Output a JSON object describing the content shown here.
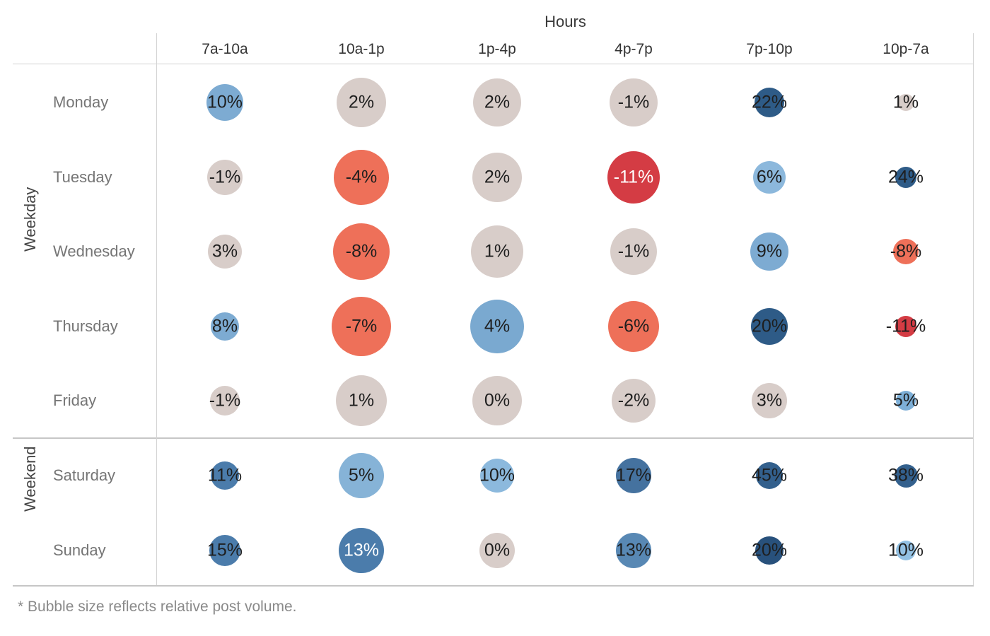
{
  "chart_data": {
    "type": "heatmap",
    "variant": "bubble-matrix",
    "title": "Hours",
    "note": "* Bubble size reflects relative post volume.",
    "x_axis_title": "Hours",
    "x_categories": [
      "7a-10a",
      "10a-1p",
      "1p-4p",
      "4p-7p",
      "7p-10p",
      "10p-7a"
    ],
    "row_groups": [
      {
        "label": "Weekday",
        "rows": [
          "Monday",
          "Tuesday",
          "Wednesday",
          "Thursday",
          "Friday"
        ]
      },
      {
        "label": "Weekend",
        "rows": [
          "Saturday",
          "Sunday"
        ]
      }
    ],
    "value_unit": "percent",
    "size_encoding": "relative post volume",
    "palette": {
      "negative_strong": "#d43c44",
      "negative": "#ee7059",
      "neutral": "#d8cdc9",
      "positive_light": "#8cb8dc",
      "positive_mid": "#7dabd2",
      "positive": "#4b7cab",
      "positive_strong": "#2e5b87"
    },
    "rows": [
      {
        "day": "Monday",
        "group": "Weekday",
        "cells": [
          {
            "label": "10%",
            "value": 10,
            "size": 52,
            "color": "#7dabd2",
            "text_color": "#1e1e1e"
          },
          {
            "label": "2%",
            "value": 2,
            "size": 70,
            "color": "#d8cdc9",
            "text_color": "#1e1e1e"
          },
          {
            "label": "2%",
            "value": 2,
            "size": 68,
            "color": "#d8cdc9",
            "text_color": "#1e1e1e"
          },
          {
            "label": "-1%",
            "value": -1,
            "size": 68,
            "color": "#d8cdc9",
            "text_color": "#1e1e1e"
          },
          {
            "label": "22%",
            "value": 22,
            "size": 42,
            "color": "#2e5b87",
            "text_color": "#1e1e1e"
          },
          {
            "label": "1%",
            "value": 1,
            "size": 24,
            "color": "#d8cdc9",
            "text_color": "#1e1e1e"
          }
        ]
      },
      {
        "day": "Tuesday",
        "group": "Weekday",
        "cells": [
          {
            "label": "-1%",
            "value": -1,
            "size": 50,
            "color": "#d8cdc9",
            "text_color": "#1e1e1e"
          },
          {
            "label": "-4%",
            "value": -4,
            "size": 78,
            "color": "#ee7059",
            "text_color": "#1e1e1e"
          },
          {
            "label": "2%",
            "value": 2,
            "size": 70,
            "color": "#d8cdc9",
            "text_color": "#1e1e1e"
          },
          {
            "label": "-11%",
            "value": -11,
            "size": 74,
            "color": "#d43c44",
            "text_color": "#ffffff"
          },
          {
            "label": "6%",
            "value": 6,
            "size": 46,
            "color": "#8cb8dc",
            "text_color": "#1e1e1e"
          },
          {
            "label": "24%",
            "value": 24,
            "size": 30,
            "color": "#2e5b87",
            "text_color": "#1e1e1e"
          }
        ]
      },
      {
        "day": "Wednesday",
        "group": "Weekday",
        "cells": [
          {
            "label": "3%",
            "value": 3,
            "size": 48,
            "color": "#d8cdc9",
            "text_color": "#1e1e1e"
          },
          {
            "label": "-8%",
            "value": -8,
            "size": 80,
            "color": "#ee7059",
            "text_color": "#1e1e1e"
          },
          {
            "label": "1%",
            "value": 1,
            "size": 74,
            "color": "#d8cdc9",
            "text_color": "#1e1e1e"
          },
          {
            "label": "-1%",
            "value": -1,
            "size": 66,
            "color": "#d8cdc9",
            "text_color": "#1e1e1e"
          },
          {
            "label": "9%",
            "value": 9,
            "size": 54,
            "color": "#7dabd2",
            "text_color": "#1e1e1e"
          },
          {
            "label": "-8%",
            "value": -8,
            "size": 36,
            "color": "#ee7059",
            "text_color": "#1e1e1e"
          }
        ]
      },
      {
        "day": "Thursday",
        "group": "Weekday",
        "cells": [
          {
            "label": "8%",
            "value": 8,
            "size": 40,
            "color": "#7dabd2",
            "text_color": "#1e1e1e"
          },
          {
            "label": "-7%",
            "value": -7,
            "size": 84,
            "color": "#ee7059",
            "text_color": "#1e1e1e"
          },
          {
            "label": "4%",
            "value": 4,
            "size": 76,
            "color": "#7aa9d0",
            "text_color": "#1e1e1e"
          },
          {
            "label": "-6%",
            "value": -6,
            "size": 72,
            "color": "#ee7059",
            "text_color": "#1e1e1e"
          },
          {
            "label": "20%",
            "value": 20,
            "size": 52,
            "color": "#2e5b87",
            "text_color": "#1e1e1e"
          },
          {
            "label": "-11%",
            "value": -11,
            "size": 30,
            "color": "#d43c44",
            "text_color": "#1e1e1e"
          }
        ]
      },
      {
        "day": "Friday",
        "group": "Weekday",
        "cells": [
          {
            "label": "-1%",
            "value": -1,
            "size": 42,
            "color": "#d8cdc9",
            "text_color": "#1e1e1e"
          },
          {
            "label": "1%",
            "value": 1,
            "size": 72,
            "color": "#d8cdc9",
            "text_color": "#1e1e1e"
          },
          {
            "label": "0%",
            "value": 0,
            "size": 70,
            "color": "#d8cdc9",
            "text_color": "#1e1e1e"
          },
          {
            "label": "-2%",
            "value": -2,
            "size": 62,
            "color": "#d8cdc9",
            "text_color": "#1e1e1e"
          },
          {
            "label": "3%",
            "value": 3,
            "size": 50,
            "color": "#d8cdc9",
            "text_color": "#1e1e1e"
          },
          {
            "label": "5%",
            "value": 5,
            "size": 28,
            "color": "#7dafd7",
            "text_color": "#1e1e1e"
          }
        ]
      },
      {
        "day": "Saturday",
        "group": "Weekend",
        "cells": [
          {
            "label": "11%",
            "value": 11,
            "size": 40,
            "color": "#4b7cab",
            "text_color": "#1e1e1e"
          },
          {
            "label": "5%",
            "value": 5,
            "size": 64,
            "color": "#86b3d7",
            "text_color": "#1e1e1e"
          },
          {
            "label": "10%",
            "value": 10,
            "size": 48,
            "color": "#8cb9dd",
            "text_color": "#1e1e1e"
          },
          {
            "label": "17%",
            "value": 17,
            "size": 50,
            "color": "#45729f",
            "text_color": "#1e1e1e"
          },
          {
            "label": "45%",
            "value": 45,
            "size": 38,
            "color": "#33608d",
            "text_color": "#1e1e1e"
          },
          {
            "label": "38%",
            "value": 38,
            "size": 33,
            "color": "#33608d",
            "text_color": "#1e1e1e"
          }
        ]
      },
      {
        "day": "Sunday",
        "group": "Weekend",
        "cells": [
          {
            "label": "15%",
            "value": 15,
            "size": 44,
            "color": "#4b7cab",
            "text_color": "#1e1e1e"
          },
          {
            "label": "13%",
            "value": 13,
            "size": 64,
            "color": "#4b7cab",
            "text_color": "#ffffff"
          },
          {
            "label": "0%",
            "value": 0,
            "size": 50,
            "color": "#d8cdc9",
            "text_color": "#1e1e1e"
          },
          {
            "label": "13%",
            "value": 13,
            "size": 50,
            "color": "#5888b4",
            "text_color": "#1e1e1e"
          },
          {
            "label": "20%",
            "value": 20,
            "size": 40,
            "color": "#28517c",
            "text_color": "#1e1e1e"
          },
          {
            "label": "10%",
            "value": 10,
            "size": 28,
            "color": "#93c1e3",
            "text_color": "#1e1e1e"
          }
        ]
      }
    ]
  }
}
